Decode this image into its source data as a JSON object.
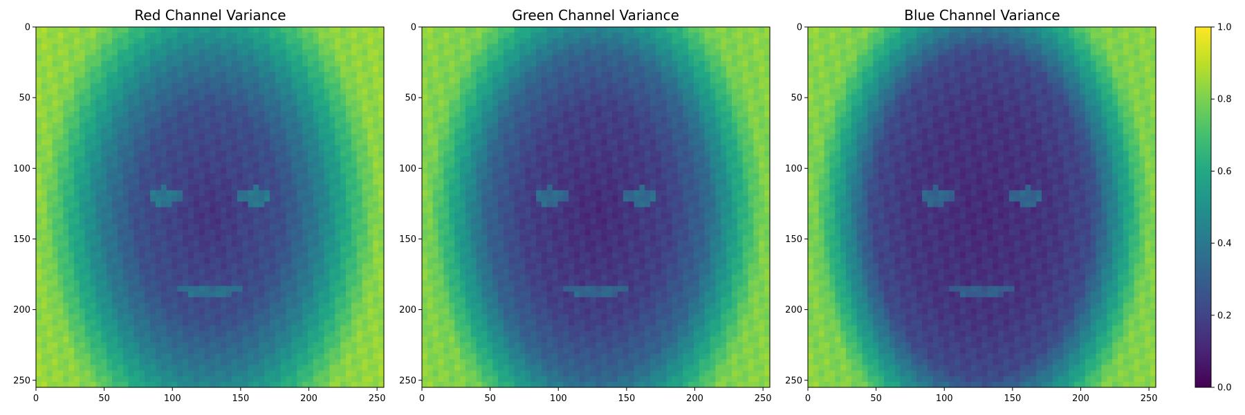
{
  "chart_data": [
    {
      "type": "heatmap",
      "title": "Red Channel Variance",
      "colormap": "viridis",
      "xlim": [
        0,
        255
      ],
      "ylim": [
        255,
        0
      ],
      "xticks": [
        0,
        50,
        100,
        150,
        200,
        250
      ],
      "yticks": [
        0,
        50,
        100,
        150,
        200,
        250
      ],
      "value_range": [
        0.0,
        1.0
      ],
      "face_center_value": 0.15,
      "hair_band_value": 0.42,
      "background_value": 0.82
    },
    {
      "type": "heatmap",
      "title": "Green Channel Variance",
      "colormap": "viridis",
      "xlim": [
        0,
        255
      ],
      "ylim": [
        255,
        0
      ],
      "xticks": [
        0,
        50,
        100,
        150,
        200,
        250
      ],
      "yticks": [
        0,
        50,
        100,
        150,
        200,
        250
      ],
      "value_range": [
        0.0,
        1.0
      ],
      "face_center_value": 0.12,
      "hair_band_value": 0.32,
      "background_value": 0.8
    },
    {
      "type": "heatmap",
      "title": "Blue Channel Variance",
      "colormap": "viridis",
      "xlim": [
        0,
        255
      ],
      "ylim": [
        255,
        0
      ],
      "xticks": [
        0,
        50,
        100,
        150,
        200,
        250
      ],
      "yticks": [
        0,
        50,
        100,
        150,
        200,
        250
      ],
      "value_range": [
        0.0,
        1.0
      ],
      "face_center_value": 0.12,
      "hair_band_value": 0.22,
      "background_value": 0.8
    }
  ],
  "colorbar": {
    "range": [
      0.0,
      1.0
    ],
    "ticks": [
      "0.0",
      "0.2",
      "0.4",
      "0.6",
      "0.8",
      "1.0"
    ],
    "colormap": "viridis"
  }
}
